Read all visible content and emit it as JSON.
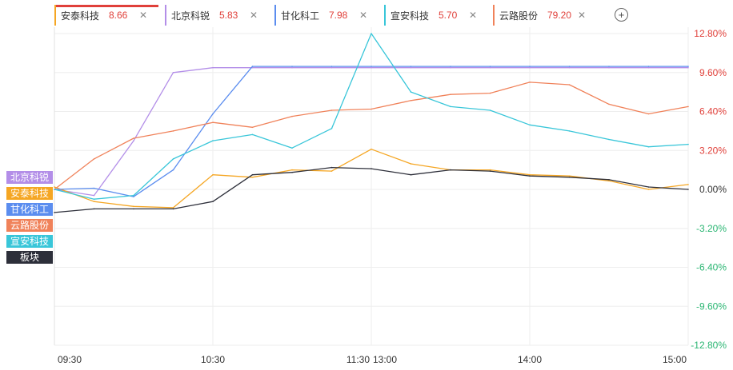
{
  "tabs": [
    {
      "name": "安泰科技",
      "value": "8.66",
      "color": "#f5a623",
      "active": true
    },
    {
      "name": "北京科锐",
      "value": "5.83",
      "color": "#b38ee8",
      "active": false
    },
    {
      "name": "甘化科工",
      "value": "7.98",
      "color": "#5b8def",
      "active": false
    },
    {
      "name": "宣安科技",
      "value": "5.70",
      "color": "#39c6d9",
      "active": false
    },
    {
      "name": "云路股份",
      "value": "79.20",
      "color": "#f0825a",
      "active": false
    }
  ],
  "add_button": "+",
  "close_glyph": "✕",
  "legend": [
    {
      "label": "北京科锐",
      "color": "#b38ee8"
    },
    {
      "label": "安泰科技",
      "color": "#f5a623"
    },
    {
      "label": "甘化科工",
      "color": "#5b8def"
    },
    {
      "label": "云路股份",
      "color": "#f0825a"
    },
    {
      "label": "宣安科技",
      "color": "#39c6d9"
    },
    {
      "label": "板块",
      "color": "#2d2f3a"
    }
  ],
  "chart_data": {
    "type": "line",
    "x": [
      "09:30",
      "09:45",
      "10:00",
      "10:15",
      "10:30",
      "10:45",
      "11:00",
      "11:15",
      "11:30",
      "13:15",
      "13:30",
      "13:45",
      "14:00",
      "14:15",
      "14:30",
      "14:45",
      "15:00"
    ],
    "x_ticks": [
      "09:30",
      "10:30",
      "11:30",
      "13:00",
      "14:00",
      "15:00"
    ],
    "y_ticks": [
      "12.80%",
      "9.60%",
      "6.40%",
      "3.20%",
      "0.00%",
      "-3.20%",
      "-6.40%",
      "-9.60%",
      "-12.80%"
    ],
    "ylim": [
      -12.8,
      12.8
    ],
    "grid": true,
    "tick_colors": {
      "positive": "#e0403a",
      "zero": "#333333",
      "negative": "#2bb673"
    },
    "series": [
      {
        "name": "北京科锐",
        "color": "#b38ee8",
        "values": [
          0.0,
          -0.5,
          4.0,
          9.6,
          10.0,
          10.0,
          10.0,
          10.0,
          10.0,
          10.0,
          10.0,
          10.0,
          10.0,
          10.0,
          10.0,
          10.0,
          10.0
        ]
      },
      {
        "name": "安泰科技",
        "color": "#f5a623",
        "values": [
          0.2,
          -1.0,
          -1.4,
          -1.5,
          1.2,
          1.0,
          1.6,
          1.5,
          3.3,
          2.1,
          1.6,
          1.6,
          1.2,
          1.1,
          0.7,
          0.0,
          0.4
        ]
      },
      {
        "name": "甘化科工",
        "color": "#5b8def",
        "values": [
          0.0,
          0.1,
          -0.6,
          1.6,
          6.2,
          10.1,
          10.1,
          10.1,
          10.1,
          10.1,
          10.1,
          10.1,
          10.1,
          10.1,
          10.1,
          10.1,
          10.1
        ]
      },
      {
        "name": "云路股份",
        "color": "#f0825a",
        "values": [
          0.0,
          2.5,
          4.2,
          4.8,
          5.5,
          5.1,
          6.0,
          6.5,
          6.6,
          7.3,
          7.8,
          7.9,
          8.8,
          8.6,
          7.0,
          6.2,
          6.8
        ]
      },
      {
        "name": "宣安科技",
        "color": "#39c6d9",
        "values": [
          0.0,
          -0.8,
          -0.5,
          2.5,
          4.0,
          4.5,
          3.4,
          5.0,
          12.8,
          8.0,
          6.8,
          6.5,
          5.3,
          4.8,
          4.1,
          3.5,
          3.7
        ]
      },
      {
        "name": "板块",
        "color": "#2d2f3a",
        "values": [
          -1.9,
          -1.6,
          -1.6,
          -1.6,
          -1.0,
          1.2,
          1.4,
          1.8,
          1.7,
          1.2,
          1.6,
          1.5,
          1.1,
          1.0,
          0.8,
          0.2,
          0.0
        ]
      }
    ]
  }
}
